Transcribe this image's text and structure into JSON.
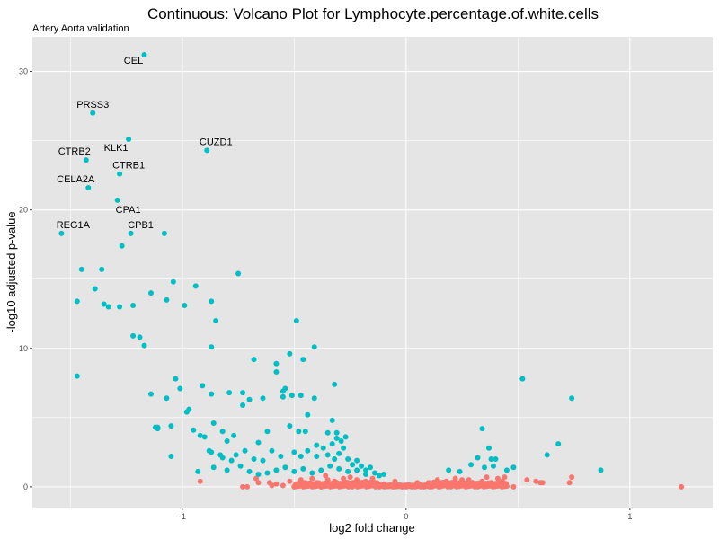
{
  "chart_data": {
    "type": "scatter",
    "title": "Continuous: Volcano Plot for Lymphocyte.percentage.of.white.cells",
    "subtitle": "Artery Aorta validation",
    "xlabel": "log2 fold change",
    "ylabel": "-log10 adjusted p-value",
    "xlim": [
      -1.67,
      1.37
    ],
    "ylim": [
      -1.5,
      32.5
    ],
    "x_ticks": [
      -1,
      0,
      1
    ],
    "x_tick_labels": [
      "-1",
      "0",
      "1"
    ],
    "y_ticks": [
      0,
      10,
      20,
      30
    ],
    "y_tick_labels": [
      "0",
      "10",
      "20",
      "30"
    ],
    "grid": true,
    "legend": "none",
    "colors": {
      "significant": "#00BFC4",
      "not_significant": "#F8766D",
      "panel": "#E5E5E5",
      "grid": "#FFFFFF"
    },
    "labeled_points": [
      {
        "label": "CEL",
        "x": -1.17,
        "y": 31.2
      },
      {
        "label": "PRSS3",
        "x": -1.4,
        "y": 27.0
      },
      {
        "label": "KLK1",
        "x": -1.24,
        "y": 25.1
      },
      {
        "label": "CUZD1",
        "x": -0.89,
        "y": 24.3
      },
      {
        "label": "CTRB2",
        "x": -1.43,
        "y": 23.6
      },
      {
        "label": "CTRB1",
        "x": -1.28,
        "y": 22.6
      },
      {
        "label": "CELA2A",
        "x": -1.42,
        "y": 21.6
      },
      {
        "label": "CPA1",
        "x": -1.29,
        "y": 20.7
      },
      {
        "label": "REG1A",
        "x": -1.54,
        "y": 18.3
      },
      {
        "label": "CPB1",
        "x": -1.23,
        "y": 18.3
      }
    ],
    "significant_points": [
      [
        -1.08,
        18.3
      ],
      [
        -1.27,
        17.4
      ],
      [
        -1.45,
        15.7
      ],
      [
        -1.36,
        15.7
      ],
      [
        -1.04,
        14.8
      ],
      [
        -1.14,
        14.0
      ],
      [
        -1.39,
        14.3
      ],
      [
        -1.47,
        13.4
      ],
      [
        -1.35,
        13.2
      ],
      [
        -1.33,
        13.0
      ],
      [
        -1.28,
        13.0
      ],
      [
        -1.22,
        13.1
      ],
      [
        -1.07,
        13.5
      ],
      [
        -0.99,
        13.1
      ],
      [
        -0.94,
        14.5
      ],
      [
        -0.87,
        13.4
      ],
      [
        -0.75,
        15.4
      ],
      [
        -0.85,
        12.0
      ],
      [
        -1.22,
        10.9
      ],
      [
        -1.19,
        10.8
      ],
      [
        -1.17,
        10.2
      ],
      [
        -0.87,
        10.1
      ],
      [
        -0.49,
        12.0
      ],
      [
        -0.41,
        10.1
      ],
      [
        -1.47,
        8.0
      ],
      [
        -1.03,
        7.8
      ],
      [
        -1.01,
        7.1
      ],
      [
        -1.07,
        6.4
      ],
      [
        -1.14,
        6.7
      ],
      [
        -0.91,
        7.3
      ],
      [
        -0.87,
        6.7
      ],
      [
        -0.95,
        4.1
      ],
      [
        -0.97,
        5.6
      ],
      [
        -0.68,
        9.2
      ],
      [
        -0.58,
        8.9
      ],
      [
        -0.58,
        8.3
      ],
      [
        -0.52,
        9.6
      ],
      [
        -0.46,
        9.2
      ],
      [
        -0.54,
        7.1
      ],
      [
        -0.51,
        6.6
      ],
      [
        -0.47,
        6.6
      ],
      [
        -0.41,
        6.4
      ],
      [
        -0.32,
        7.4
      ],
      [
        -0.79,
        6.8
      ],
      [
        -0.73,
        6.8
      ],
      [
        -0.73,
        5.9
      ],
      [
        -0.7,
        6.3
      ],
      [
        -0.64,
        6.4
      ],
      [
        -0.55,
        6.9
      ],
      [
        -0.55,
        6.5
      ],
      [
        -0.44,
        5.2
      ],
      [
        -0.33,
        4.8
      ],
      [
        -0.31,
        3.9
      ],
      [
        -1.12,
        4.3
      ],
      [
        -1.11,
        4.3
      ],
      [
        -1.11,
        4.2
      ],
      [
        -1.05,
        4.4
      ],
      [
        -1.05,
        2.2
      ],
      [
        -0.98,
        5.4
      ],
      [
        -0.86,
        4.6
      ],
      [
        -0.82,
        4.0
      ],
      [
        -0.8,
        3.3
      ],
      [
        -0.77,
        3.7
      ],
      [
        -0.66,
        3.2
      ],
      [
        -0.62,
        4.0
      ],
      [
        -0.52,
        4.4
      ],
      [
        -0.48,
        4.0
      ],
      [
        -0.45,
        4.0
      ],
      [
        -0.4,
        3.0
      ],
      [
        -0.35,
        3.9
      ],
      [
        -0.92,
        3.7
      ],
      [
        -0.9,
        3.6
      ],
      [
        -0.88,
        2.6
      ],
      [
        -0.87,
        2.5
      ],
      [
        -0.83,
        2.3
      ],
      [
        -0.82,
        2.1
      ],
      [
        -0.78,
        1.9
      ],
      [
        -0.76,
        2.3
      ],
      [
        -0.72,
        2.6
      ],
      [
        -0.68,
        2.0
      ],
      [
        -0.64,
        1.9
      ],
      [
        -0.6,
        2.6
      ],
      [
        -0.56,
        2.2
      ],
      [
        -0.5,
        2.5
      ],
      [
        -0.47,
        2.2
      ],
      [
        -0.44,
        2.6
      ],
      [
        -0.4,
        2.2
      ],
      [
        -0.37,
        2.8
      ],
      [
        -0.35,
        2.3
      ],
      [
        -0.32,
        2.0
      ],
      [
        -0.3,
        2.4
      ],
      [
        -0.28,
        2.8
      ],
      [
        -0.26,
        2.0
      ],
      [
        -0.24,
        1.6
      ],
      [
        -0.22,
        1.9
      ],
      [
        -0.2,
        1.5
      ],
      [
        -0.18,
        1.2
      ],
      [
        -0.16,
        1.4
      ],
      [
        -0.14,
        1.0
      ],
      [
        -0.93,
        1.1
      ],
      [
        -0.86,
        1.4
      ],
      [
        -0.8,
        1.2
      ],
      [
        -0.74,
        1.5
      ],
      [
        -0.7,
        1.1
      ],
      [
        -0.66,
        0.9
      ],
      [
        -0.62,
        1.0
      ],
      [
        -0.58,
        1.2
      ],
      [
        -0.54,
        1.4
      ],
      [
        -0.5,
        1.1
      ],
      [
        -0.46,
        1.3
      ],
      [
        -0.42,
        1.0
      ],
      [
        -0.38,
        1.2
      ],
      [
        -0.34,
        1.5
      ],
      [
        -0.3,
        1.3
      ],
      [
        -0.26,
        1.1
      ],
      [
        -0.22,
        1.2
      ],
      [
        -0.18,
        0.9
      ],
      [
        -0.12,
        0.8
      ],
      [
        -0.1,
        0.9
      ],
      [
        -0.33,
        3.1
      ],
      [
        -0.29,
        3.3
      ],
      [
        -0.27,
        3.6
      ],
      [
        -0.31,
        3.5
      ],
      [
        0.19,
        1.2
      ],
      [
        0.24,
        1.1
      ],
      [
        0.29,
        1.6
      ],
      [
        0.32,
        2.1
      ],
      [
        0.35,
        1.4
      ],
      [
        0.39,
        1.5
      ],
      [
        0.4,
        2.0
      ],
      [
        0.45,
        1.2
      ],
      [
        0.48,
        1.4
      ],
      [
        0.52,
        7.8
      ],
      [
        0.74,
        6.4
      ],
      [
        0.68,
        3.1
      ],
      [
        0.63,
        2.3
      ],
      [
        0.87,
        1.2
      ],
      [
        0.34,
        4.2
      ],
      [
        0.37,
        2.8
      ],
      [
        0.38,
        2.0
      ]
    ],
    "nonsignificant_points": [
      [
        -0.92,
        0.4
      ],
      [
        -0.73,
        0.0
      ],
      [
        -0.71,
        0.0
      ],
      [
        -0.67,
        0.6
      ],
      [
        -0.66,
        0.3
      ],
      [
        -0.61,
        0.3
      ],
      [
        -0.58,
        0.2
      ],
      [
        -0.55,
        0.1
      ],
      [
        -0.52,
        0.4
      ],
      [
        -0.49,
        0.2
      ],
      [
        -0.47,
        0.5
      ],
      [
        -0.44,
        0.1
      ],
      [
        -0.42,
        0.6
      ],
      [
        -0.4,
        0.3
      ],
      [
        -0.38,
        0.0
      ],
      [
        -0.36,
        0.8
      ],
      [
        -0.34,
        0.2
      ],
      [
        -0.32,
        0.4
      ],
      [
        -0.3,
        0.1
      ],
      [
        -0.28,
        0.6
      ],
      [
        -0.26,
        0.3
      ],
      [
        -0.24,
        0.0
      ],
      [
        -0.22,
        0.5
      ],
      [
        -0.2,
        0.2
      ],
      [
        -0.18,
        0.4
      ],
      [
        -0.16,
        0.1
      ],
      [
        -0.14,
        0.3
      ],
      [
        -0.12,
        0.0
      ],
      [
        -0.1,
        0.2
      ],
      [
        -0.08,
        0.1
      ],
      [
        -0.06,
        0.0
      ],
      [
        -0.04,
        0.1
      ],
      [
        -0.02,
        0.0
      ],
      [
        0.0,
        0.0
      ],
      [
        0.02,
        0.1
      ],
      [
        0.04,
        0.0
      ],
      [
        0.06,
        0.2
      ],
      [
        0.08,
        0.0
      ],
      [
        0.1,
        0.3
      ],
      [
        0.12,
        0.1
      ],
      [
        0.14,
        0.5
      ],
      [
        0.16,
        0.2
      ],
      [
        0.18,
        0.4
      ],
      [
        0.2,
        0.0
      ],
      [
        0.22,
        0.6
      ],
      [
        0.24,
        0.3
      ],
      [
        0.26,
        0.1
      ],
      [
        0.28,
        0.5
      ],
      [
        0.3,
        0.2
      ],
      [
        0.32,
        0.0
      ],
      [
        0.34,
        0.4
      ],
      [
        0.36,
        0.7
      ],
      [
        0.38,
        0.3
      ],
      [
        0.41,
        0.6
      ],
      [
        0.43,
        0.4
      ],
      [
        0.44,
        0.7
      ],
      [
        0.48,
        0.0
      ],
      [
        0.54,
        0.5
      ],
      [
        0.58,
        0.4
      ],
      [
        0.6,
        0.3
      ],
      [
        0.61,
        0.3
      ],
      [
        0.73,
        0.3
      ],
      [
        0.74,
        0.7
      ],
      [
        1.23,
        0.0
      ],
      [
        -0.6,
        0.1
      ],
      [
        -0.5,
        0.0
      ],
      [
        -0.45,
        0.3
      ],
      [
        -0.35,
        0.5
      ],
      [
        -0.25,
        0.7
      ],
      [
        -0.15,
        0.6
      ],
      [
        -0.05,
        0.4
      ],
      [
        0.05,
        0.3
      ],
      [
        0.15,
        0.0
      ],
      [
        0.25,
        0.5
      ],
      [
        0.33,
        0.1
      ],
      [
        0.4,
        0.2
      ]
    ]
  }
}
